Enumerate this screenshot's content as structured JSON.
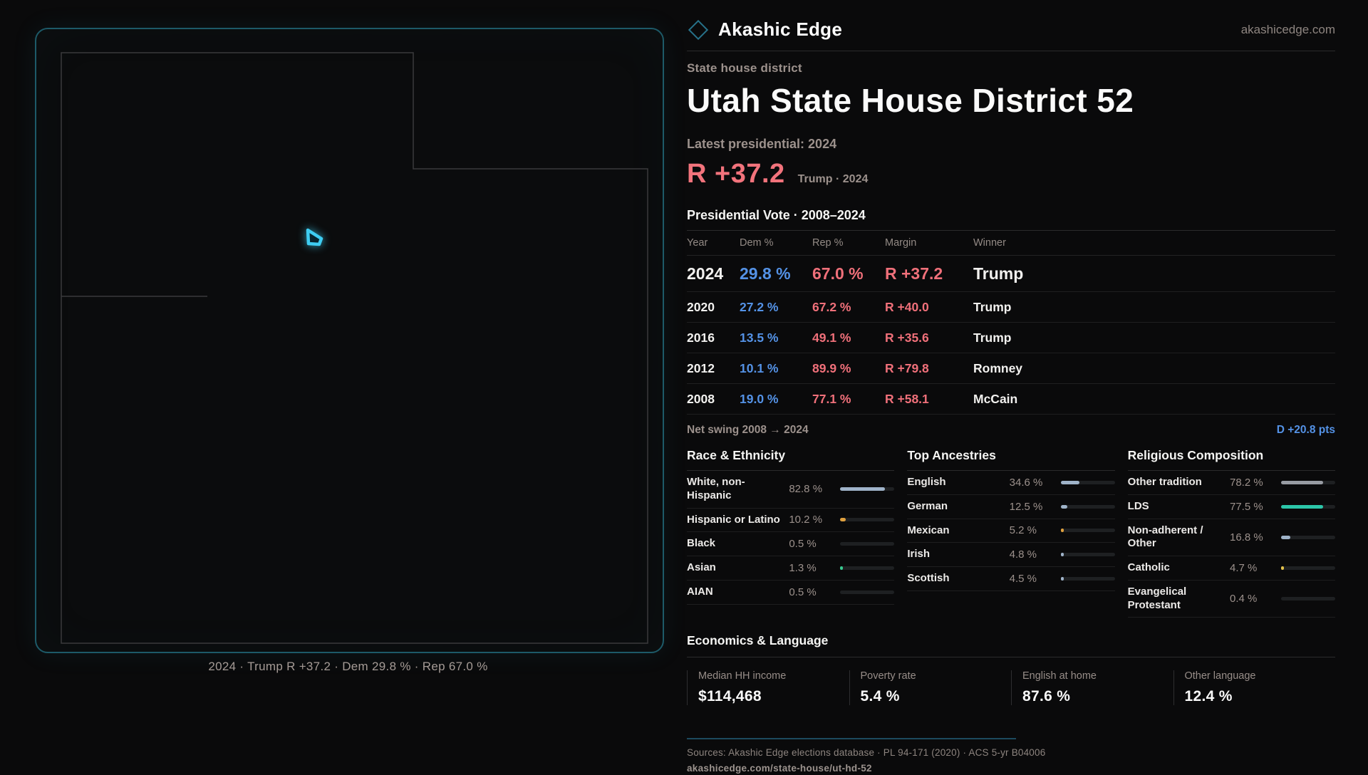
{
  "brand": {
    "name": "Akashic Edge",
    "domain": "akashicedge.com"
  },
  "header": {
    "kicker": "State house district",
    "title": "Utah State House District 52",
    "latest_label": "Latest presidential: 2024",
    "margin_value": "R +37.2",
    "margin_context": "Trump · 2024"
  },
  "map": {
    "caption": "2024 · Trump R +37.2 · Dem 29.8 % · Rep 67.0 %"
  },
  "table": {
    "title": "Presidential Vote · 2008–2024",
    "columns": [
      "Year",
      "Dem %",
      "Rep %",
      "Margin",
      "Winner"
    ],
    "rows": [
      {
        "year": "2024",
        "dem": "29.8 %",
        "rep": "67.0 %",
        "margin": "R +37.2",
        "winner": "Trump"
      },
      {
        "year": "2020",
        "dem": "27.2 %",
        "rep": "67.2 %",
        "margin": "R +40.0",
        "winner": "Trump"
      },
      {
        "year": "2016",
        "dem": "13.5 %",
        "rep": "49.1 %",
        "margin": "R +35.6",
        "winner": "Trump"
      },
      {
        "year": "2012",
        "dem": "10.1 %",
        "rep": "89.9 %",
        "margin": "R +79.8",
        "winner": "Romney"
      },
      {
        "year": "2008",
        "dem": "19.0 %",
        "rep": "77.1 %",
        "margin": "R +58.1",
        "winner": "McCain"
      }
    ],
    "net_swing_label": "Net swing 2008 → 2024",
    "net_swing_value": "D +20.8 pts"
  },
  "colors": {
    "accent_teal": "#1d5a68",
    "district_cyan": "#3ecdf2",
    "dem_blue": "#5492e6",
    "rep_red": "#f0707a",
    "steel": "#9fb3c9",
    "amber": "#dfa03f",
    "yellow": "#e2c14b",
    "teal": "#2cc6a9",
    "gray": "#989ca3",
    "green": "#38c98f",
    "none": ""
  },
  "demographics": {
    "sections": [
      {
        "title": "Race & Ethnicity",
        "rows": [
          {
            "label": "White, non-Hispanic",
            "value": "82.8 %",
            "pct": 82.8,
            "color": "steel"
          },
          {
            "label": "Hispanic or Latino",
            "value": "10.2 %",
            "pct": 10.2,
            "color": "amber"
          },
          {
            "label": "Black",
            "value": "0.5 %",
            "pct": 0.5,
            "color": "none"
          },
          {
            "label": "Asian",
            "value": "1.3 %",
            "pct": 1.3,
            "color": "green"
          },
          {
            "label": "AIAN",
            "value": "0.5 %",
            "pct": 0.5,
            "color": "none"
          }
        ]
      },
      {
        "title": "Top Ancestries",
        "rows": [
          {
            "label": "English",
            "value": "34.6 %",
            "pct": 34.6,
            "color": "steel"
          },
          {
            "label": "German",
            "value": "12.5 %",
            "pct": 12.5,
            "color": "steel"
          },
          {
            "label": "Mexican",
            "value": "5.2 %",
            "pct": 5.2,
            "color": "amber"
          },
          {
            "label": "Irish",
            "value": "4.8 %",
            "pct": 4.8,
            "color": "steel"
          },
          {
            "label": "Scottish",
            "value": "4.5 %",
            "pct": 4.5,
            "color": "steel"
          }
        ]
      },
      {
        "title": "Religious Composition",
        "rows": [
          {
            "label": "Other tradition",
            "value": "78.2 %",
            "pct": 78.2,
            "color": "gray"
          },
          {
            "label": "LDS",
            "value": "77.5 %",
            "pct": 77.5,
            "color": "teal"
          },
          {
            "label": "Non-adherent / Other",
            "value": "16.8 %",
            "pct": 16.8,
            "color": "steel"
          },
          {
            "label": "Catholic",
            "value": "4.7 %",
            "pct": 4.7,
            "color": "yellow"
          },
          {
            "label": "Evangelical Protestant",
            "value": "0.4 %",
            "pct": 0.4,
            "color": "none"
          }
        ]
      }
    ]
  },
  "economics": {
    "title": "Economics & Language",
    "stats": [
      {
        "label": "Median HH income",
        "value": "$114,468"
      },
      {
        "label": "Poverty rate",
        "value": "5.4 %"
      },
      {
        "label": "English at home",
        "value": "87.6 %"
      },
      {
        "label": "Other language",
        "value": "12.4 %"
      }
    ]
  },
  "footer": {
    "sources": "Sources: Akashic Edge elections database · PL 94-171 (2020) · ACS 5-yr B04006",
    "permalink": "akashicedge.com/state-house/ut-hd-52"
  },
  "chart_data": [
    {
      "type": "table",
      "title": "Presidential Vote · 2008–2024",
      "columns": [
        "Year",
        "Dem %",
        "Rep %",
        "Margin",
        "Winner"
      ],
      "rows": [
        [
          2024,
          29.8,
          67.0,
          "R +37.2",
          "Trump"
        ],
        [
          2020,
          27.2,
          67.2,
          "R +40.0",
          "Trump"
        ],
        [
          2016,
          13.5,
          49.1,
          "R +35.6",
          "Trump"
        ],
        [
          2012,
          10.1,
          89.9,
          "R +79.8",
          "Romney"
        ],
        [
          2008,
          19.0,
          77.1,
          "R +58.1",
          "McCain"
        ]
      ],
      "annotations": [
        "Net swing 2008 → 2024: D +20.8 pts",
        "Latest presidential 2024: R +37.2 (Trump)"
      ]
    },
    {
      "type": "bar",
      "title": "Race & Ethnicity",
      "unit": "%",
      "categories": [
        "White, non-Hispanic",
        "Hispanic or Latino",
        "Black",
        "Asian",
        "AIAN"
      ],
      "values": [
        82.8,
        10.2,
        0.5,
        1.3,
        0.5
      ],
      "xlim": [
        0,
        100
      ]
    },
    {
      "type": "bar",
      "title": "Top Ancestries",
      "unit": "%",
      "categories": [
        "English",
        "German",
        "Mexican",
        "Irish",
        "Scottish"
      ],
      "values": [
        34.6,
        12.5,
        5.2,
        4.8,
        4.5
      ],
      "xlim": [
        0,
        100
      ]
    },
    {
      "type": "bar",
      "title": "Religious Composition",
      "unit": "%",
      "categories": [
        "Other tradition",
        "LDS",
        "Non-adherent / Other",
        "Catholic",
        "Evangelical Protestant"
      ],
      "values": [
        78.2,
        77.5,
        16.8,
        4.7,
        0.4
      ],
      "xlim": [
        0,
        100
      ]
    },
    {
      "type": "table",
      "title": "Economics & Language",
      "columns": [
        "Median HH income",
        "Poverty rate",
        "English at home",
        "Other language"
      ],
      "rows": [
        [
          "$114,468",
          "5.4 %",
          "87.6 %",
          "12.4 %"
        ]
      ]
    }
  ]
}
